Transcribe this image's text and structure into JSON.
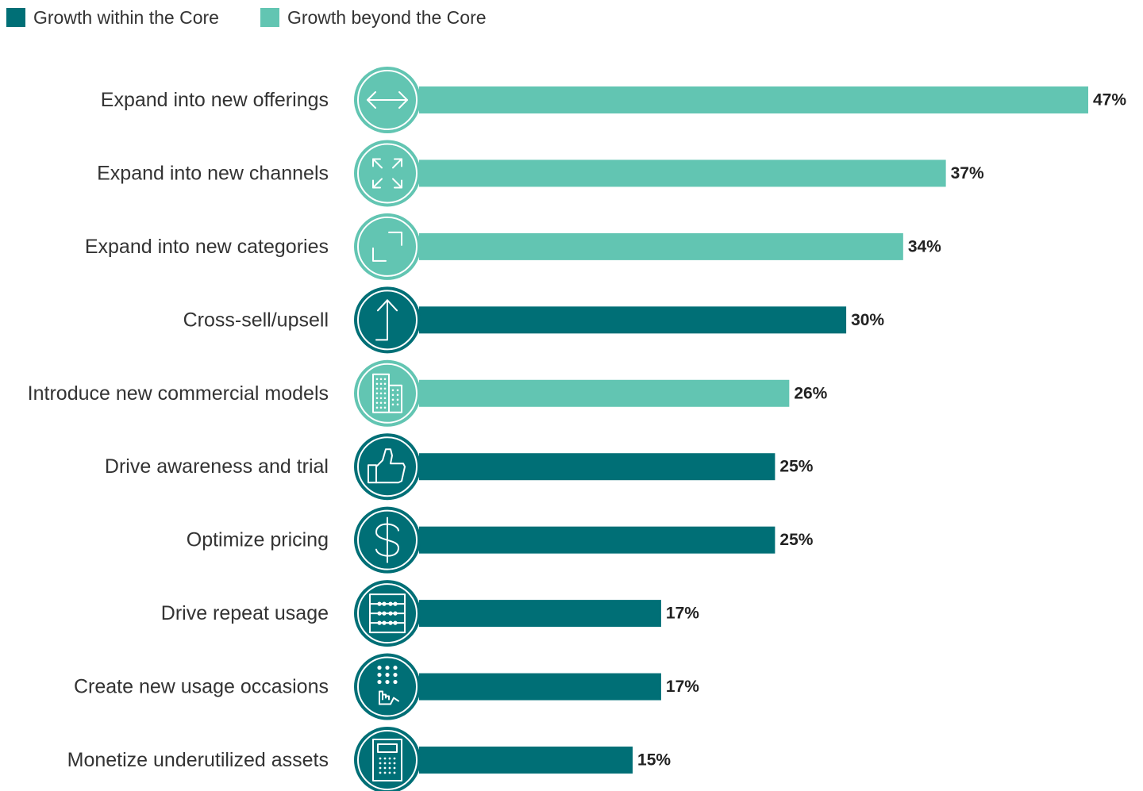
{
  "colors": {
    "within": "#006f76",
    "beyond": "#62c5b2"
  },
  "legend": [
    {
      "key": "within",
      "label": "Growth within the Core"
    },
    {
      "key": "beyond",
      "label": "Growth beyond the Core"
    }
  ],
  "chart_data": {
    "type": "bar",
    "orientation": "horizontal",
    "xlim": [
      0,
      47
    ],
    "grid": false,
    "legend_placement": "top-left",
    "categories": [
      "Expand into new offerings",
      "Expand into new channels",
      "Expand into new categories",
      "Cross-sell/upsell",
      "Introduce new commercial models",
      "Drive awareness and trial",
      "Optimize pricing",
      "Drive repeat usage",
      "Create new usage occasions",
      "Monetize underutilized assets"
    ],
    "values": [
      47,
      37,
      34,
      30,
      26,
      25,
      25,
      17,
      17,
      15
    ],
    "value_labels": [
      "47%",
      "37%",
      "34%",
      "30%",
      "26%",
      "25%",
      "25%",
      "17%",
      "17%",
      "15%"
    ],
    "groups": [
      "beyond",
      "beyond",
      "beyond",
      "within",
      "beyond",
      "within",
      "within",
      "within",
      "within",
      "within"
    ],
    "icons": [
      "arrows-left-right-icon",
      "expand-arrows-icon",
      "corner-brackets-icon",
      "up-arrow-icon",
      "building-icon",
      "thumbs-up-icon",
      "dollar-icon",
      "abacus-icon",
      "keypad-hand-icon",
      "calculator-icon"
    ]
  }
}
